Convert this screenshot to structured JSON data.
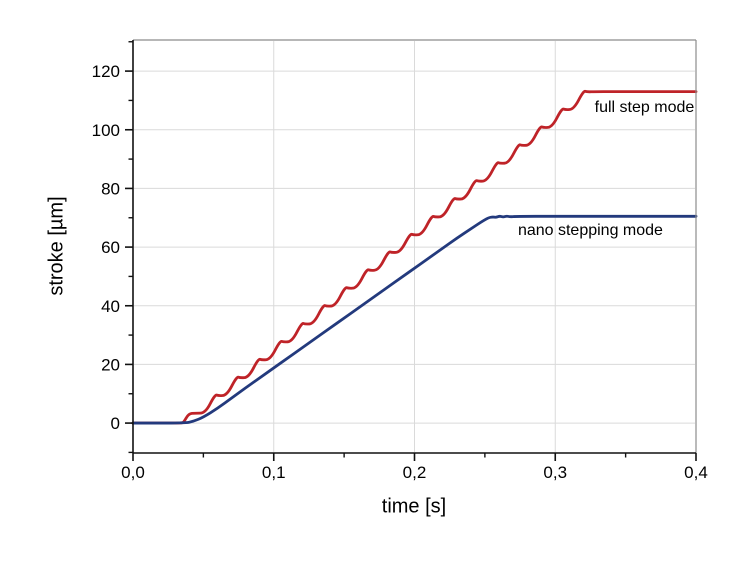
{
  "chart_data": {
    "type": "line",
    "title": "",
    "xlabel": "time [s]",
    "ylabel": "stroke [µm]",
    "xlim": [
      0,
      0.4
    ],
    "ylim": [
      -10.2,
      130.6
    ],
    "grid": "major-only",
    "legend_position": "inline-annotations",
    "colors": {
      "axis": "#111111",
      "frame": "#8c8c8c",
      "gridline": "#dadada",
      "background": "#ffffff",
      "full_step_line": "#bf2328",
      "nano_stepping_line": "#233a7d"
    },
    "x_ticks": {
      "values": [
        0,
        0.1,
        0.2,
        0.3,
        0.4
      ],
      "labels": [
        "0,0",
        "0,1",
        "0,2",
        "0,3",
        "0,4"
      ],
      "minor": [
        0.05,
        0.15,
        0.25,
        0.35
      ],
      "grid_values": [
        0.1,
        0.2,
        0.3
      ]
    },
    "y_ticks": {
      "values": [
        0,
        20,
        40,
        60,
        80,
        100,
        120
      ],
      "labels": [
        "0",
        "20",
        "40",
        "60",
        "80",
        "100",
        "120"
      ],
      "minor": [
        -10,
        10,
        30,
        50,
        70,
        90,
        110,
        130
      ],
      "grid_values": [
        0,
        20,
        40,
        60,
        80,
        100,
        120
      ]
    },
    "series": [
      {
        "name": "full step mode",
        "color": "#bf2328",
        "label": {
          "text": "full step mode",
          "x": 0.328,
          "y": 110.5
        },
        "points": [
          [
            0,
            0
          ],
          [
            0.034,
            0
          ],
          [
            0.036,
            0.2
          ],
          [
            0.0395,
            3.2
          ],
          [
            0.0442,
            3.4
          ],
          [
            0.0514,
            3.4
          ],
          [
            0.0583,
            9.8
          ],
          [
            0.0607,
            9.3
          ],
          [
            0.0668,
            9.5
          ],
          [
            0.0737,
            15.9
          ],
          [
            0.0761,
            15.4
          ],
          [
            0.0822,
            15.6
          ],
          [
            0.0891,
            22.0
          ],
          [
            0.0915,
            21.5
          ],
          [
            0.0976,
            21.7
          ],
          [
            0.1045,
            28.1
          ],
          [
            0.1069,
            27.6
          ],
          [
            0.113,
            27.8
          ],
          [
            0.1199,
            34.2
          ],
          [
            0.1223,
            33.7
          ],
          [
            0.1284,
            33.9
          ],
          [
            0.1353,
            40.3
          ],
          [
            0.1377,
            39.8
          ],
          [
            0.1438,
            40.0
          ],
          [
            0.1507,
            46.4
          ],
          [
            0.1531,
            45.9
          ],
          [
            0.1592,
            46.1
          ],
          [
            0.1661,
            52.5
          ],
          [
            0.1685,
            52.0
          ],
          [
            0.1746,
            52.2
          ],
          [
            0.1815,
            58.6
          ],
          [
            0.1839,
            58.1
          ],
          [
            0.19,
            58.3
          ],
          [
            0.1969,
            64.6
          ],
          [
            0.1993,
            64.1
          ],
          [
            0.2054,
            64.3
          ],
          [
            0.2123,
            70.7
          ],
          [
            0.2147,
            70.2
          ],
          [
            0.2208,
            70.4
          ],
          [
            0.2277,
            76.8
          ],
          [
            0.2301,
            76.3
          ],
          [
            0.2362,
            76.5
          ],
          [
            0.2431,
            82.9
          ],
          [
            0.2455,
            82.4
          ],
          [
            0.2516,
            82.6
          ],
          [
            0.2585,
            89.0
          ],
          [
            0.2609,
            88.5
          ],
          [
            0.267,
            88.7
          ],
          [
            0.2739,
            95.1
          ],
          [
            0.2763,
            94.6
          ],
          [
            0.2824,
            94.8
          ],
          [
            0.2893,
            101.2
          ],
          [
            0.2917,
            100.7
          ],
          [
            0.2978,
            100.9
          ],
          [
            0.3047,
            107.3
          ],
          [
            0.3071,
            106.8
          ],
          [
            0.3132,
            107.0
          ],
          [
            0.3201,
            113.3
          ],
          [
            0.3225,
            112.9
          ],
          [
            0.3286,
            113
          ],
          [
            0.34,
            113
          ],
          [
            0.4,
            113
          ]
        ]
      },
      {
        "name": "nano stepping mode",
        "color": "#233a7d",
        "label": {
          "text": "nano stepping mode",
          "x": 0.2735,
          "y": 68.5
        },
        "points": [
          [
            0,
            0
          ],
          [
            0.037,
            0
          ],
          [
            0.043,
            0.6
          ],
          [
            0.05,
            2
          ],
          [
            0.06,
            5
          ],
          [
            0.07,
            8.5
          ],
          [
            0.08,
            12
          ],
          [
            0.09,
            15.4
          ],
          [
            0.1,
            18.8
          ],
          [
            0.11,
            22.2
          ],
          [
            0.12,
            25.6
          ],
          [
            0.13,
            29
          ],
          [
            0.14,
            32.4
          ],
          [
            0.15,
            35.8
          ],
          [
            0.16,
            39.2
          ],
          [
            0.17,
            42.6
          ],
          [
            0.18,
            46
          ],
          [
            0.19,
            49.4
          ],
          [
            0.2,
            52.8
          ],
          [
            0.21,
            56.2
          ],
          [
            0.22,
            59.6
          ],
          [
            0.23,
            63
          ],
          [
            0.24,
            66.2
          ],
          [
            0.2475,
            68.6
          ],
          [
            0.2525,
            70
          ],
          [
            0.2555,
            70.3
          ],
          [
            0.258,
            70.1
          ],
          [
            0.2605,
            70.6
          ],
          [
            0.263,
            70.2
          ],
          [
            0.2655,
            70.6
          ],
          [
            0.268,
            70.3
          ],
          [
            0.272,
            70.5
          ],
          [
            0.3,
            70.5
          ],
          [
            0.35,
            70.5
          ],
          [
            0.4,
            70.5
          ]
        ]
      }
    ]
  }
}
